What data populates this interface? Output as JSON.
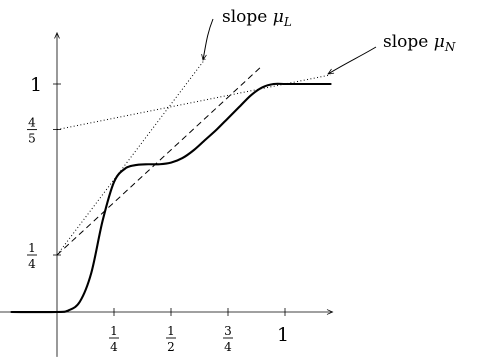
{
  "chart_data": {
    "type": "line",
    "title": "",
    "xlabel": "",
    "ylabel": "",
    "xlim": [
      -0.2,
      1.2
    ],
    "ylim": [
      -0.03,
      1.22
    ],
    "grid": false,
    "x_ticks": [
      {
        "value": 0.25,
        "num": "1",
        "den": "4"
      },
      {
        "value": 0.5,
        "num": "1",
        "den": "2"
      },
      {
        "value": 0.75,
        "num": "3",
        "den": "4"
      },
      {
        "value": 1,
        "label": "1"
      }
    ],
    "y_ticks": [
      {
        "value": 0.25,
        "num": "1",
        "den": "4"
      },
      {
        "value": 0.8,
        "num": "4",
        "den": "5"
      },
      {
        "value": 1,
        "label": "1"
      }
    ],
    "series": [
      {
        "style": "solid",
        "x": [
          -0.2,
          0.0,
          0.05,
          0.1,
          0.15,
          0.2,
          0.25,
          0.3,
          0.35,
          0.4,
          0.45,
          0.5,
          0.55,
          0.6,
          0.65,
          0.7,
          0.75,
          0.8,
          0.85,
          0.9,
          0.95,
          1.0,
          1.05,
          1.1,
          1.2
        ],
        "y": [
          0.0,
          0.0,
          0.007,
          0.045,
          0.17,
          0.4,
          0.57,
          0.63,
          0.645,
          0.648,
          0.648,
          0.655,
          0.675,
          0.71,
          0.755,
          0.8,
          0.85,
          0.9,
          0.95,
          0.985,
          1.0,
          1.0,
          1.0,
          1.0,
          1.0
        ]
      },
      {
        "style": "dotted",
        "x": [
          0,
          0.65
        ],
        "y": [
          0.25,
          1.11
        ]
      },
      {
        "style": "dotted",
        "x": [
          0,
          1.2
        ],
        "y": [
          0.8,
          1.04
        ]
      },
      {
        "style": "dashed",
        "x": [
          0,
          0.9
        ],
        "y": [
          0.25,
          1.08
        ]
      }
    ],
    "annotations": [
      {
        "prefix": "slope ",
        "symbol": "μ",
        "subscript": "L"
      },
      {
        "prefix": "slope ",
        "symbol": "μ",
        "subscript": "N"
      }
    ]
  }
}
